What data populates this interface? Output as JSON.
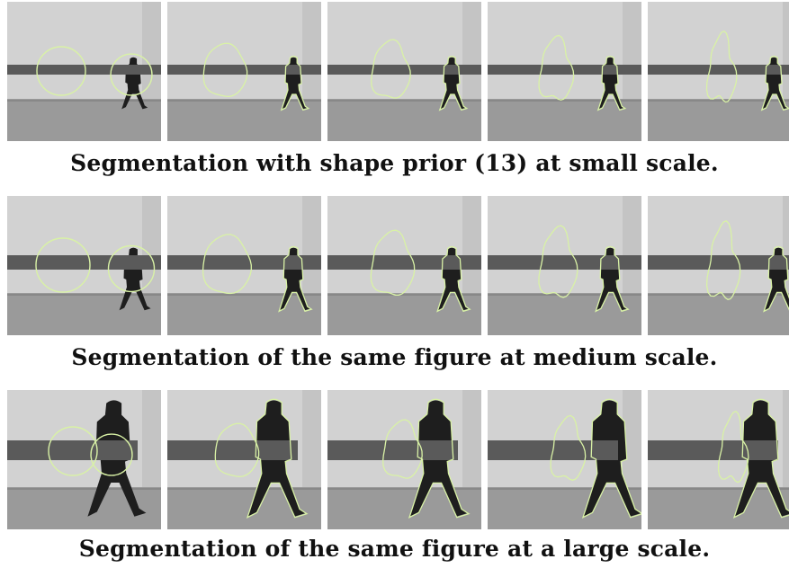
{
  "rows": [
    {
      "caption": "Segmentation with shape prior (13) at small scale.",
      "scale": "small",
      "frames": 5
    },
    {
      "caption": "Segmentation of the same figure at medium scale.",
      "scale": "medium",
      "frames": 5
    },
    {
      "caption": "Segmentation of the same figure at a large scale.",
      "scale": "large",
      "frames": 5
    }
  ],
  "colors": {
    "contour": "#d9f2a6",
    "occluder": "#5a5a5a",
    "wall": "#d2d2d2",
    "floor": "#9a9a9a",
    "person": "#1e1e1e"
  }
}
